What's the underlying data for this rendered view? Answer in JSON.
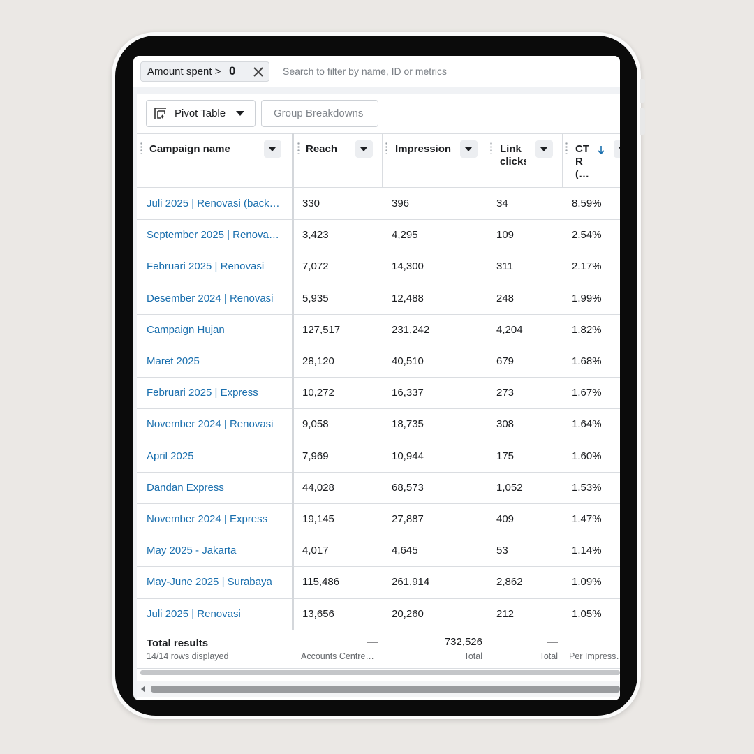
{
  "filter": {
    "chip_label": "Amount spent >",
    "chip_value": "0",
    "search_placeholder": "Search to filter by name, ID or metrics"
  },
  "toolbar": {
    "pivot": "Pivot Table",
    "group": "Group Breakdowns"
  },
  "table": {
    "columns": [
      "Campaign name",
      "Reach",
      "Impressions",
      "Link clicks",
      "CTR (…"
    ],
    "rows": [
      [
        "Juli 2025 | Renovasi (back…",
        "330",
        "396",
        "34",
        "8.59%"
      ],
      [
        "September 2025 | Renova…",
        "3,423",
        "4,295",
        "109",
        "2.54%"
      ],
      [
        "Februari 2025 | Renovasi",
        "7,072",
        "14,300",
        "311",
        "2.17%"
      ],
      [
        "Desember 2024 | Renovasi",
        "5,935",
        "12,488",
        "248",
        "1.99%"
      ],
      [
        "Campaign Hujan",
        "127,517",
        "231,242",
        "4,204",
        "1.82%"
      ],
      [
        "Maret 2025",
        "28,120",
        "40,510",
        "679",
        "1.68%"
      ],
      [
        "Februari 2025 | Express",
        "10,272",
        "16,337",
        "273",
        "1.67%"
      ],
      [
        "November 2024 | Renovasi",
        "9,058",
        "18,735",
        "308",
        "1.64%"
      ],
      [
        "April 2025",
        "7,969",
        "10,944",
        "175",
        "1.60%"
      ],
      [
        "Dandan Express",
        "44,028",
        "68,573",
        "1,052",
        "1.53%"
      ],
      [
        "November 2024 | Express",
        "19,145",
        "27,887",
        "409",
        "1.47%"
      ],
      [
        "May 2025 - Jakarta",
        "4,017",
        "4,645",
        "53",
        "1.14%"
      ],
      [
        "May-June 2025 | Surabaya",
        "115,486",
        "261,914",
        "2,862",
        "1.09%"
      ],
      [
        "Juli 2025 | Renovasi",
        "13,656",
        "20,260",
        "212",
        "1.05%"
      ]
    ],
    "footer": {
      "title": "Total results",
      "subtitle": "14/14 rows displayed",
      "cells": [
        {
          "value": "—",
          "label": "Accounts Centre…"
        },
        {
          "value": "732,526",
          "label": "Total"
        },
        {
          "value": "—",
          "label": "Total"
        },
        {
          "label": "Per Impress…"
        }
      ]
    }
  }
}
